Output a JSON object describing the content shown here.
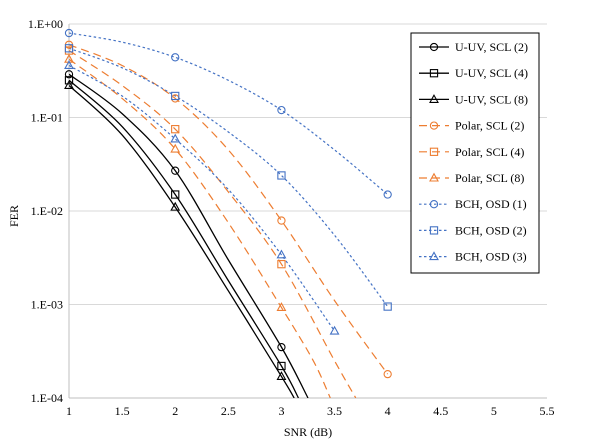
{
  "chart_data": {
    "type": "line",
    "title": "",
    "xlabel": "SNR (dB)",
    "ylabel": "FER",
    "xlim": [
      1,
      5.5
    ],
    "ylim": [
      0.0001,
      1
    ],
    "yscale": "log",
    "grid": "horizontal",
    "legend_position": "top-right",
    "x_ticks": [
      "1",
      "1.5",
      "2",
      "2.5",
      "3",
      "3.5",
      "4",
      "4.5",
      "5",
      "5.5"
    ],
    "y_ticks": [
      "1.E-04",
      "1.E-03",
      "1.E-02",
      "1.E-01",
      "1.E+00"
    ],
    "series": [
      {
        "name": "U-UV, SCL (2)",
        "color": "#000000",
        "dash": "solid",
        "marker": "circle",
        "x": [
          1,
          2,
          3,
          3.5
        ],
        "y": [
          0.29,
          0.027,
          0.00035,
          1e-05
        ],
        "curve_x": [
          1,
          1.5,
          2,
          2.5,
          3,
          3.25
        ],
        "curve_y": [
          0.29,
          0.11,
          0.027,
          0.003,
          0.00035,
          0.0001
        ]
      },
      {
        "name": "U-UV, SCL (4)",
        "color": "#000000",
        "dash": "solid",
        "marker": "square",
        "x": [
          1,
          2,
          3
        ],
        "y": [
          0.25,
          0.015,
          0.00022
        ],
        "curve_x": [
          1,
          1.5,
          2,
          2.5,
          3,
          3.16
        ],
        "curve_y": [
          0.25,
          0.08,
          0.015,
          0.0018,
          0.00022,
          0.0001
        ]
      },
      {
        "name": "U-UV, SCL (8)",
        "color": "#000000",
        "dash": "solid",
        "marker": "triangle",
        "x": [
          1,
          2,
          3
        ],
        "y": [
          0.22,
          0.011,
          0.00017
        ],
        "curve_x": [
          1,
          1.5,
          2,
          2.5,
          3,
          3.12
        ],
        "curve_y": [
          0.22,
          0.065,
          0.011,
          0.0014,
          0.00017,
          0.0001
        ]
      },
      {
        "name": "Polar, SCL (2)",
        "color": "#ED7D31",
        "dash": "long",
        "marker": "circle",
        "x": [
          1,
          2,
          3,
          4
        ],
        "y": [
          0.6,
          0.16,
          0.0079,
          0.00018
        ],
        "curve_x": [
          1,
          1.5,
          2,
          2.5,
          3,
          3.5,
          4
        ],
        "curve_y": [
          0.6,
          0.36,
          0.16,
          0.045,
          0.0079,
          0.0011,
          0.00018
        ]
      },
      {
        "name": "Polar, SCL (4)",
        "color": "#ED7D31",
        "dash": "long",
        "marker": "square",
        "x": [
          1,
          2,
          3
        ],
        "y": [
          0.52,
          0.075,
          0.0027
        ],
        "curve_x": [
          1,
          1.5,
          2,
          2.5,
          3,
          3.5,
          3.7
        ],
        "curve_y": [
          0.52,
          0.22,
          0.075,
          0.016,
          0.0027,
          0.00025,
          0.0001
        ]
      },
      {
        "name": "Polar, SCL (8)",
        "color": "#ED7D31",
        "dash": "long",
        "marker": "triangle",
        "x": [
          1,
          2,
          3
        ],
        "y": [
          0.42,
          0.046,
          0.00093
        ],
        "curve_x": [
          1,
          1.5,
          2,
          2.5,
          3,
          3.3,
          3.46
        ],
        "curve_y": [
          0.42,
          0.16,
          0.046,
          0.0075,
          0.00093,
          0.00025,
          0.0001
        ]
      },
      {
        "name": "BCH, OSD (1)",
        "color": "#4472C4",
        "dash": "dot",
        "marker": "circle",
        "x": [
          1,
          2,
          3,
          4
        ],
        "y": [
          0.8,
          0.44,
          0.12,
          0.015
        ],
        "curve_x": [
          1,
          1.5,
          2,
          2.5,
          3,
          3.5,
          4
        ],
        "curve_y": [
          0.8,
          0.64,
          0.44,
          0.25,
          0.12,
          0.045,
          0.015
        ]
      },
      {
        "name": "BCH, OSD (2)",
        "color": "#4472C4",
        "dash": "dot",
        "marker": "square",
        "x": [
          1,
          2,
          3,
          4
        ],
        "y": [
          0.55,
          0.17,
          0.024,
          0.00095
        ],
        "curve_x": [
          1,
          1.5,
          2,
          2.5,
          3,
          3.5,
          4
        ],
        "curve_y": [
          0.55,
          0.34,
          0.17,
          0.07,
          0.024,
          0.0055,
          0.00095
        ]
      },
      {
        "name": "BCH, OSD (3)",
        "color": "#4472C4",
        "dash": "dot",
        "marker": "triangle",
        "x": [
          1,
          2,
          3,
          3.5
        ],
        "y": [
          0.36,
          0.059,
          0.0034,
          0.00052
        ],
        "curve_x": [
          1,
          1.5,
          2,
          2.5,
          3,
          3.5
        ],
        "curve_y": [
          0.36,
          0.17,
          0.059,
          0.017,
          0.0034,
          0.00052
        ]
      }
    ]
  }
}
